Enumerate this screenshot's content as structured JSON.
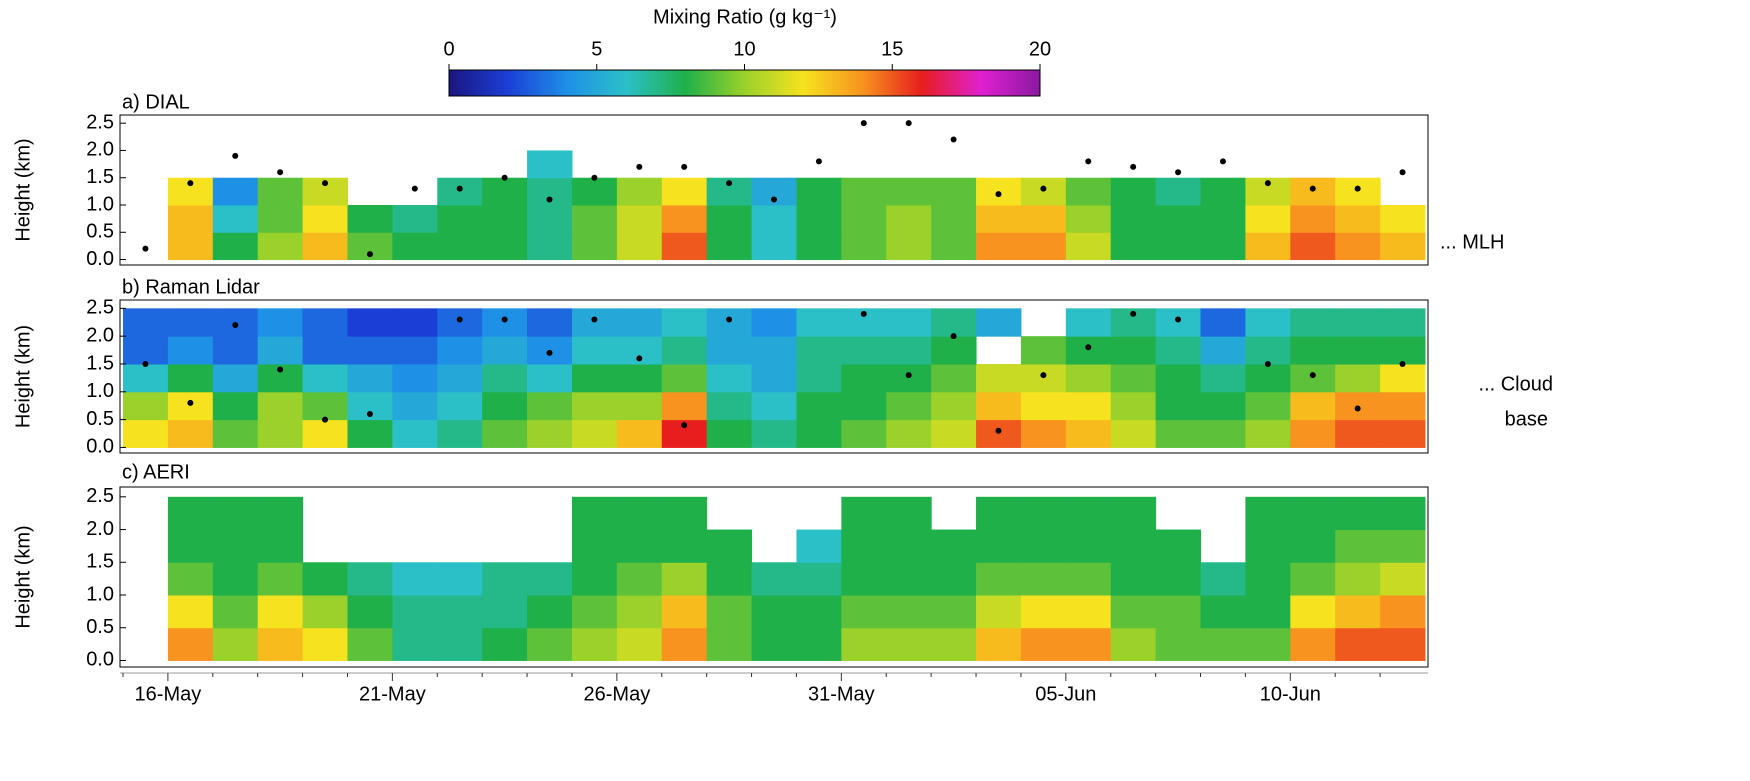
{
  "colorbar": {
    "title": "Mixing Ratio (g kg⁻¹)",
    "clim": [
      0,
      20
    ],
    "ticks": [
      0,
      5,
      10,
      15,
      20
    ],
    "colors": [
      "#1a1680",
      "#1b3fd6",
      "#1e90e6",
      "#2bc0c8",
      "#1fb04a",
      "#9ad12a",
      "#f6e21e",
      "#f7931e",
      "#e81e1e",
      "#e020d0",
      "#8a1aa0"
    ]
  },
  "chart_data": [
    {
      "type": "heatmap",
      "title": "a) DIAL",
      "ylabel": "Height (km)",
      "annotation": [
        "... MLH"
      ],
      "ylim": [
        -0.1,
        2.65
      ],
      "height_bins": [
        0,
        0.5,
        1.0,
        1.5,
        2.0,
        2.5
      ],
      "yticks": [
        {
          "value": 0,
          "label": "0.0"
        },
        0.5,
        {
          "value": 1,
          "label": "1.0"
        },
        1.5,
        {
          "value": 2,
          "label": "2.0"
        },
        2.5
      ],
      "values": [
        [
          null,
          13,
          8,
          10,
          13,
          9,
          8,
          8,
          8,
          7,
          9,
          11,
          15,
          8,
          6,
          8,
          9,
          10,
          9,
          14,
          14,
          11,
          8,
          8,
          8,
          13,
          15,
          14,
          13
        ],
        [
          null,
          13,
          6,
          9,
          12,
          8,
          7,
          8,
          8,
          7,
          9,
          11,
          14,
          8,
          6,
          8,
          9,
          10,
          9,
          13,
          13,
          10,
          8,
          8,
          8,
          12,
          14,
          13,
          12
        ],
        [
          null,
          12,
          4,
          9,
          11,
          null,
          null,
          7,
          8,
          7,
          8,
          10,
          12,
          7,
          5,
          8,
          9,
          9,
          9,
          12,
          11,
          9,
          8,
          7,
          8,
          11,
          13,
          12,
          null
        ],
        [
          null,
          null,
          null,
          null,
          null,
          null,
          null,
          null,
          null,
          6,
          null,
          null,
          null,
          null,
          null,
          null,
          null,
          null,
          null,
          null,
          null,
          null,
          null,
          null,
          null,
          null,
          null,
          null,
          null
        ],
        [
          null,
          null,
          null,
          null,
          null,
          null,
          null,
          null,
          null,
          null,
          null,
          null,
          null,
          null,
          null,
          null,
          null,
          null,
          null,
          null,
          null,
          null,
          null,
          null,
          null,
          null,
          null,
          null,
          null
        ]
      ],
      "points": [
        0.2,
        1.4,
        1.9,
        1.6,
        1.4,
        0.1,
        1.3,
        1.3,
        1.5,
        1.1,
        1.5,
        1.7,
        1.7,
        1.4,
        1.1,
        1.8,
        2.5,
        2.5,
        2.2,
        1.2,
        1.3,
        1.8,
        1.7,
        1.6,
        1.8,
        1.4,
        1.3,
        1.3,
        1.6
      ],
      "point_color": "#000000"
    },
    {
      "type": "heatmap",
      "title": "b) Raman Lidar",
      "ylabel": "Height (km)",
      "annotation": [
        "... Cloud",
        "base"
      ],
      "ylim": [
        -0.1,
        2.65
      ],
      "height_bins": [
        0,
        0.5,
        1.0,
        1.5,
        2.0,
        2.5
      ],
      "yticks": [
        {
          "value": 0,
          "label": "0.0"
        },
        0.5,
        {
          "value": 1,
          "label": "1.0"
        },
        1.5,
        {
          "value": 2,
          "label": "2.0"
        },
        2.5
      ],
      "values": [
        [
          12,
          13,
          9,
          10,
          12,
          8,
          6,
          7,
          9,
          10,
          11,
          13,
          16,
          8,
          7,
          8,
          9,
          10,
          11,
          15,
          14,
          13,
          11,
          9,
          9,
          10,
          14,
          15,
          15
        ],
        [
          10,
          12,
          8,
          10,
          9,
          6,
          5,
          6,
          8,
          9,
          10,
          10,
          14,
          7,
          6,
          8,
          8,
          9,
          10,
          13,
          12,
          12,
          10,
          8,
          8,
          9,
          13,
          14,
          14
        ],
        [
          6,
          8,
          5,
          8,
          6,
          5,
          4,
          5,
          7,
          6,
          8,
          8,
          9,
          6,
          5,
          7,
          8,
          8,
          9,
          11,
          11,
          10,
          9,
          8,
          7,
          8,
          9,
          10,
          12
        ],
        [
          3,
          4,
          3,
          5,
          3,
          3,
          3,
          4,
          5,
          4,
          6,
          6,
          7,
          5,
          5,
          7,
          7,
          7,
          8,
          null,
          9,
          8,
          8,
          7,
          5,
          7,
          8,
          8,
          8
        ],
        [
          3,
          3,
          3,
          4,
          3,
          2,
          2,
          3,
          4,
          3,
          5,
          5,
          6,
          5,
          4,
          6,
          6,
          6,
          7,
          5,
          null,
          6,
          7,
          6,
          3,
          6,
          7,
          7,
          7
        ]
      ],
      "points": [
        1.5,
        0.8,
        2.2,
        1.4,
        0.5,
        0.6,
        null,
        2.3,
        2.3,
        1.7,
        2.3,
        1.6,
        0.4,
        2.3,
        null,
        null,
        2.4,
        1.3,
        2.0,
        0.3,
        1.3,
        1.8,
        2.4,
        2.3,
        null,
        1.5,
        1.3,
        0.7,
        1.5
      ],
      "point_color": "#000000"
    },
    {
      "type": "heatmap",
      "title": "c) AERI",
      "ylabel": "Height (km)",
      "ylim": [
        -0.1,
        2.65
      ],
      "height_bins": [
        0,
        0.5,
        1.0,
        1.5,
        2.0,
        2.5
      ],
      "yticks": [
        {
          "value": 0,
          "label": "0.0"
        },
        0.5,
        {
          "value": 1,
          "label": "1.0"
        },
        1.5,
        {
          "value": 2,
          "label": "2.0"
        },
        2.5
      ],
      "categories": [
        null,
        "16-May",
        null,
        null,
        null,
        null,
        "21-May",
        null,
        null,
        null,
        null,
        "26-May",
        null,
        null,
        null,
        null,
        "31-May",
        null,
        null,
        null,
        null,
        "05-Jun",
        null,
        null,
        null,
        null,
        "10-Jun",
        null,
        null
      ],
      "values": [
        [
          null,
          14,
          10,
          13,
          12,
          9,
          7,
          7,
          8,
          9,
          10,
          11,
          14,
          9,
          8,
          8,
          10,
          10,
          10,
          13,
          14,
          14,
          10,
          9,
          9,
          9,
          14,
          15,
          15
        ],
        [
          null,
          12,
          9,
          12,
          10,
          8,
          7,
          7,
          7,
          8,
          9,
          10,
          13,
          9,
          8,
          8,
          9,
          9,
          9,
          11,
          12,
          12,
          9,
          9,
          8,
          8,
          12,
          13,
          14
        ],
        [
          null,
          9,
          8,
          9,
          8,
          7,
          6,
          6,
          7,
          7,
          8,
          9,
          10,
          8,
          7,
          7,
          8,
          8,
          8,
          9,
          9,
          9,
          8,
          8,
          7,
          8,
          9,
          10,
          11
        ],
        [
          null,
          8,
          8,
          8,
          null,
          null,
          null,
          null,
          null,
          null,
          8,
          8,
          8,
          8,
          null,
          6,
          8,
          8,
          8,
          8,
          8,
          8,
          8,
          8,
          null,
          8,
          8,
          9,
          9
        ],
        [
          null,
          8,
          8,
          8,
          null,
          null,
          null,
          null,
          null,
          null,
          8,
          8,
          8,
          null,
          null,
          null,
          8,
          8,
          null,
          8,
          8,
          8,
          8,
          null,
          null,
          8,
          8,
          8,
          8
        ]
      ]
    }
  ]
}
